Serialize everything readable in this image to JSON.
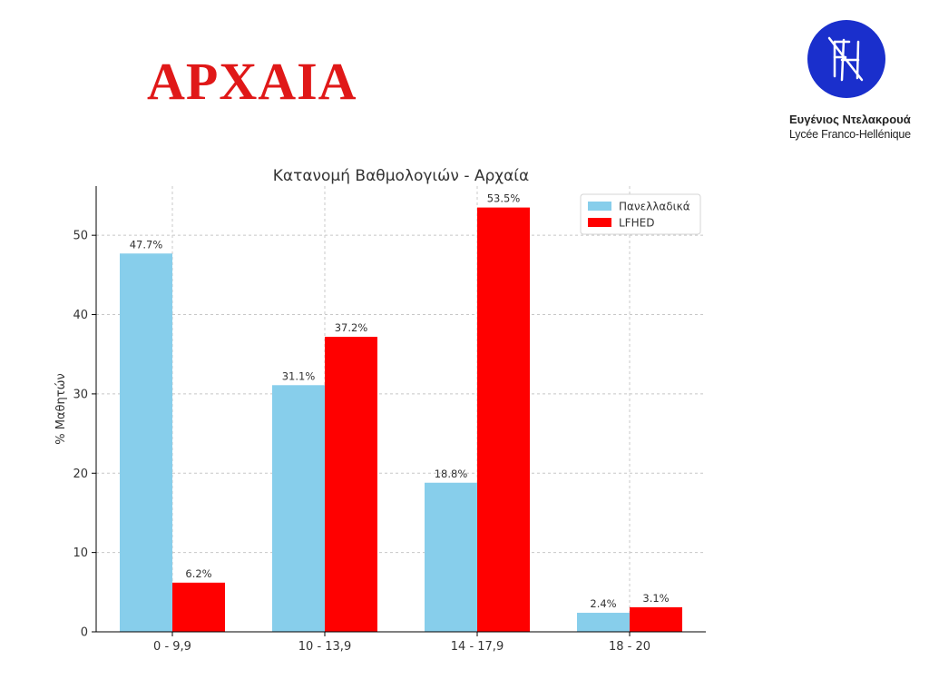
{
  "slide": {
    "title": "ΑΡΧΑΙΑ",
    "logo": {
      "initials": "FH",
      "name": "Ευγένιος Ντελακρουά",
      "school": "Lycée Franco-Hellénique",
      "color": "#1a2fcc"
    }
  },
  "chart_data": {
    "type": "bar",
    "title": "Κατανομή Βαθμολογιών - Αρχαία",
    "xlabel": "",
    "ylabel": "% Μαθητών",
    "categories": [
      "0 - 9,9",
      "10 - 13,9",
      "14 - 17,9",
      "18 - 20"
    ],
    "series": [
      {
        "name": "Πανελλαδικά",
        "color": "#87ceeb",
        "values": [
          47.7,
          31.1,
          18.8,
          2.4
        ],
        "labels": [
          "47.7%",
          "31.1%",
          "18.8%",
          "2.4%"
        ]
      },
      {
        "name": "LFHED",
        "color": "#ff0000",
        "values": [
          6.2,
          37.2,
          53.5,
          3.1
        ],
        "labels": [
          "6.2%",
          "37.2%",
          "53.5%",
          "3.1%"
        ]
      }
    ],
    "ylim": [
      0,
      56.2
    ],
    "yticks": [
      0,
      10,
      20,
      30,
      40,
      50
    ],
    "grid": true,
    "legend_position": "top-right"
  }
}
